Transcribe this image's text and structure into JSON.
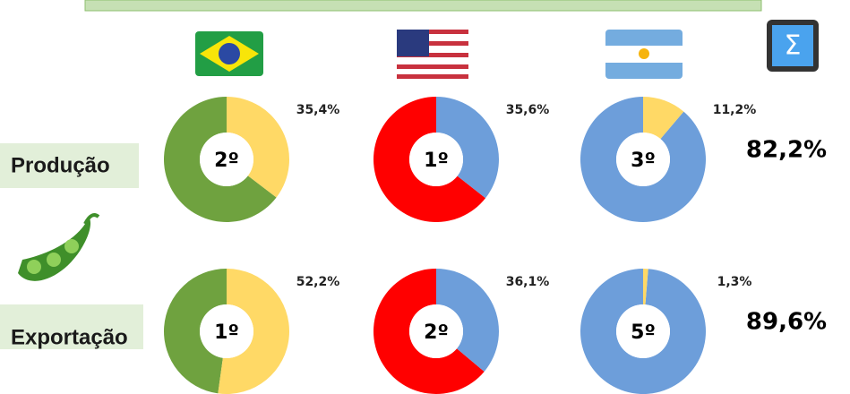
{
  "rows": [
    {
      "label": "Produção",
      "total": "82,2%"
    },
    {
      "label": "Exportação",
      "total": "89,6%"
    }
  ],
  "chart_data": [
    {
      "type": "donut",
      "rank": "2º",
      "values": [
        35.4
      ],
      "value_labels": [
        "35,4%"
      ],
      "colors": [
        "#ffd966",
        "#6fa23f"
      ]
    },
    {
      "type": "donut",
      "rank": "1º",
      "values": [
        35.6
      ],
      "value_labels": [
        "35,6%"
      ],
      "colors": [
        "#6d9eda",
        "#ff0000"
      ]
    },
    {
      "type": "donut",
      "rank": "3º",
      "values": [
        11.2
      ],
      "value_labels": [
        "11,2%"
      ],
      "colors": [
        "#ffd966",
        "#6d9eda"
      ]
    },
    {
      "type": "donut",
      "rank": "1º",
      "values": [
        52.2
      ],
      "value_labels": [
        "52,2%"
      ],
      "colors": [
        "#ffd966",
        "#6fa23f"
      ]
    },
    {
      "type": "donut",
      "rank": "2º",
      "values": [
        36.1
      ],
      "value_labels": [
        "36,1%"
      ],
      "colors": [
        "#6d9eda",
        "#ff0000"
      ]
    },
    {
      "type": "donut",
      "rank": "5º",
      "values": [
        1.3
      ],
      "value_labels": [
        "1,3%"
      ],
      "colors": [
        "#ffd966",
        "#6d9eda"
      ]
    }
  ]
}
